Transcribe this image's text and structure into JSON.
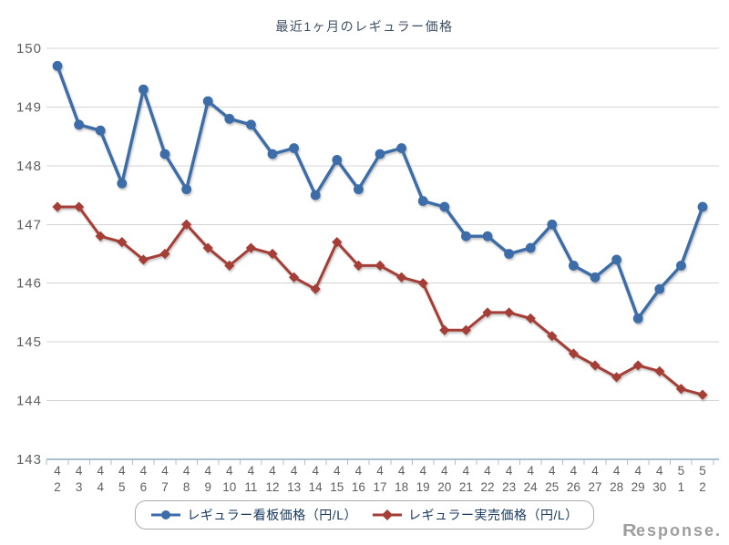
{
  "watermark": "Response.",
  "chart_data": {
    "type": "line",
    "title": "最近1ヶ月のレギュラー価格",
    "categories": [
      "4/2",
      "4/3",
      "4/4",
      "4/5",
      "4/6",
      "4/7",
      "4/8",
      "4/9",
      "4/10",
      "4/11",
      "4/12",
      "4/13",
      "4/14",
      "4/15",
      "4/16",
      "4/17",
      "4/18",
      "4/19",
      "4/20",
      "4/21",
      "4/22",
      "4/23",
      "4/24",
      "4/25",
      "4/26",
      "4/27",
      "4/28",
      "4/29",
      "4/30",
      "5/1",
      "5/2"
    ],
    "series": [
      {
        "name": "レギュラー看板価格（円/L）",
        "marker": "circle",
        "color": "#3c6da8",
        "values": [
          149.7,
          148.7,
          148.6,
          147.7,
          149.3,
          148.2,
          147.6,
          149.1,
          148.8,
          148.7,
          148.2,
          148.3,
          147.5,
          148.1,
          147.6,
          148.2,
          148.3,
          147.4,
          147.3,
          146.8,
          146.8,
          146.5,
          146.6,
          147.0,
          146.3,
          146.1,
          146.4,
          145.4,
          145.9,
          146.3,
          147.3
        ]
      },
      {
        "name": "レギュラー実売価格（円/L）",
        "marker": "diamond",
        "color": "#a53e36",
        "values": [
          147.3,
          147.3,
          146.8,
          146.7,
          146.4,
          146.5,
          147.0,
          146.6,
          146.3,
          146.6,
          146.5,
          146.1,
          145.9,
          146.7,
          146.3,
          146.3,
          146.1,
          146.0,
          145.2,
          145.2,
          145.5,
          145.5,
          145.4,
          145.1,
          144.8,
          144.6,
          144.4,
          144.6,
          144.5,
          144.2,
          144.1
        ]
      }
    ],
    "ylim": [
      143,
      150
    ],
    "ytick_step": 1,
    "xlabel": "",
    "ylabel": "",
    "grid": "horizontal",
    "legend_position": "bottom",
    "colors": {
      "grid": "#d4d4d4",
      "axis": "#a9bfd2",
      "tick_label": "#5f5f5f",
      "title": "#3d4f63",
      "legend_text": "#17375e",
      "legend_border": "#ababab",
      "watermark": "#9e9e9e"
    }
  }
}
